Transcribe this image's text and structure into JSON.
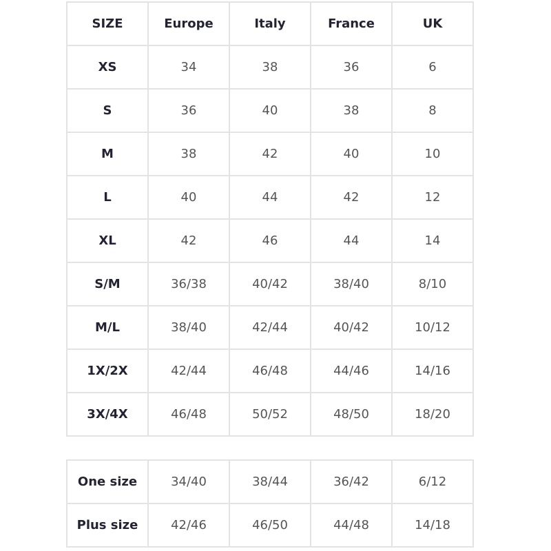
{
  "columns": [
    "SIZE",
    "Europe",
    "Italy",
    "France",
    "UK"
  ],
  "main_table": [
    [
      "XS",
      "34",
      "38",
      "36",
      "6"
    ],
    [
      "S",
      "36",
      "40",
      "38",
      "8"
    ],
    [
      "M",
      "38",
      "42",
      "40",
      "10"
    ],
    [
      "L",
      "40",
      "44",
      "42",
      "12"
    ],
    [
      "XL",
      "42",
      "46",
      "44",
      "14"
    ],
    [
      "S/M",
      "36/38",
      "40/42",
      "38/40",
      "8/10"
    ],
    [
      "M/L",
      "38/40",
      "42/44",
      "40/42",
      "10/12"
    ],
    [
      "1X/2X",
      "42/44",
      "46/48",
      "44/46",
      "14/16"
    ],
    [
      "3X/4X",
      "46/48",
      "50/52",
      "48/50",
      "18/20"
    ]
  ],
  "extra_table": [
    [
      "One size",
      "34/40",
      "38/44",
      "36/42",
      "6/12"
    ],
    [
      "Plus size",
      "42/46",
      "46/50",
      "44/48",
      "14/18"
    ]
  ]
}
